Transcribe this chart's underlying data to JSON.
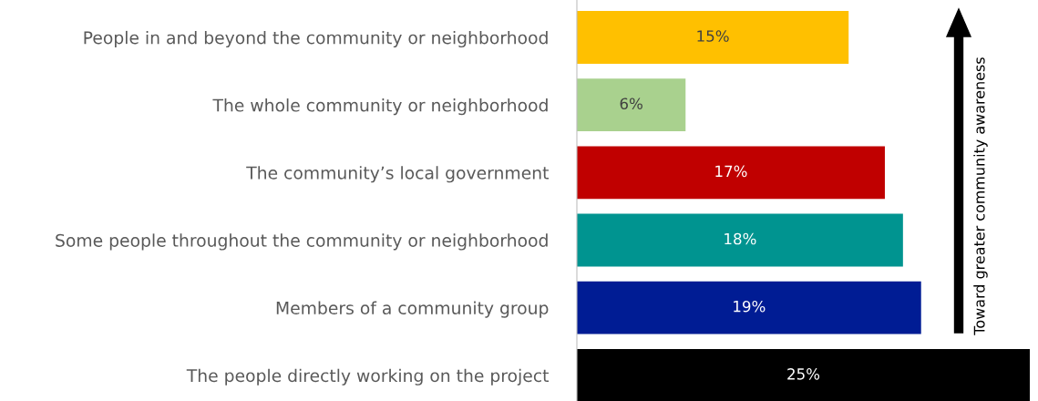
{
  "chart_data": {
    "type": "bar",
    "orientation": "horizontal",
    "categories": [
      "People in and beyond the community or neighborhood",
      "The whole community or neighborhood",
      "The community’s local government",
      "Some people throughout the community or neighborhood",
      "Members of a community group",
      "The people directly working on the project"
    ],
    "values": [
      15,
      6,
      17,
      18,
      19,
      25
    ],
    "colors": [
      "#ffc000",
      "#a9d18e",
      "#c00000",
      "#009490",
      "#001c94",
      "#000000"
    ],
    "value_labels": [
      "15%",
      "6%",
      "17%",
      "18%",
      "19%",
      "25%"
    ],
    "xlim": [
      0,
      25
    ],
    "tick_labels": "y",
    "grid": false,
    "legend": false,
    "annotations": [
      "Toward greater community awareness"
    ]
  }
}
